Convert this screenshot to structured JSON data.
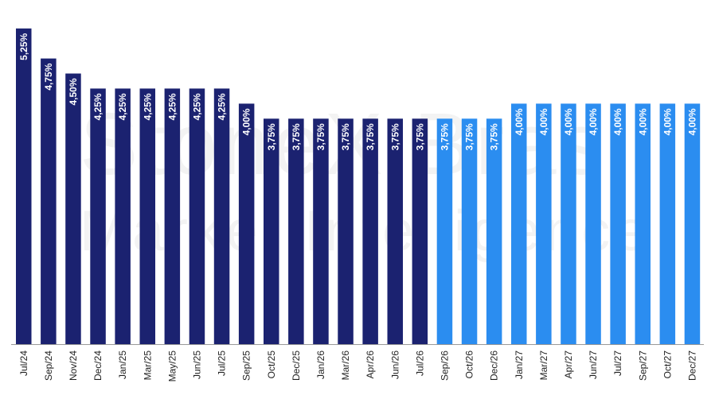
{
  "watermark": {
    "line1": "StoneX Brasil",
    "line2": "Market Intelligence"
  },
  "chart_data": {
    "type": "bar",
    "title": "",
    "xlabel": "",
    "ylabel": "",
    "ylim": [
      0,
      5.3
    ],
    "grid": false,
    "legend": "none",
    "categories": [
      "Jul/24",
      "Sep/24",
      "Nov/24",
      "Dec/24",
      "Jan/25",
      "Mar/25",
      "May/25",
      "Jun/25",
      "Jul/25",
      "Sep/25",
      "Oct/25",
      "Dec/25",
      "Jan/26",
      "Mar/26",
      "Apr/26",
      "Jun/26",
      "Jul/26",
      "Sep/26",
      "Oct/26",
      "Dec/26",
      "Jan/27",
      "Mar/27",
      "Apr/27",
      "Jun/27",
      "Jul/27",
      "Sep/27",
      "Oct/27",
      "Dec/27"
    ],
    "values": [
      5.25,
      4.75,
      4.5,
      4.25,
      4.25,
      4.25,
      4.25,
      4.25,
      4.25,
      4.0,
      3.75,
      3.75,
      3.75,
      3.75,
      3.75,
      3.75,
      3.75,
      3.75,
      3.75,
      3.75,
      4.0,
      4.0,
      4.0,
      4.0,
      4.0,
      4.0,
      4.0,
      4.0
    ],
    "labels": [
      "5,25%",
      "4,75%",
      "4,50%",
      "4,25%",
      "4,25%",
      "4,25%",
      "4,25%",
      "4,25%",
      "4,25%",
      "4,00%",
      "3,75%",
      "3,75%",
      "3,75%",
      "3,75%",
      "3,75%",
      "3,75%",
      "3,75%",
      "3,75%",
      "3,75%",
      "3,75%",
      "4,00%",
      "4,00%",
      "4,00%",
      "4,00%",
      "4,00%",
      "4,00%",
      "4,00%",
      "4,00%"
    ],
    "forecast_start_index": 17,
    "colors": {
      "actual": "#1b2270",
      "forecast": "#2b8df0",
      "label": "#ffffff",
      "axis": "#999999"
    }
  }
}
